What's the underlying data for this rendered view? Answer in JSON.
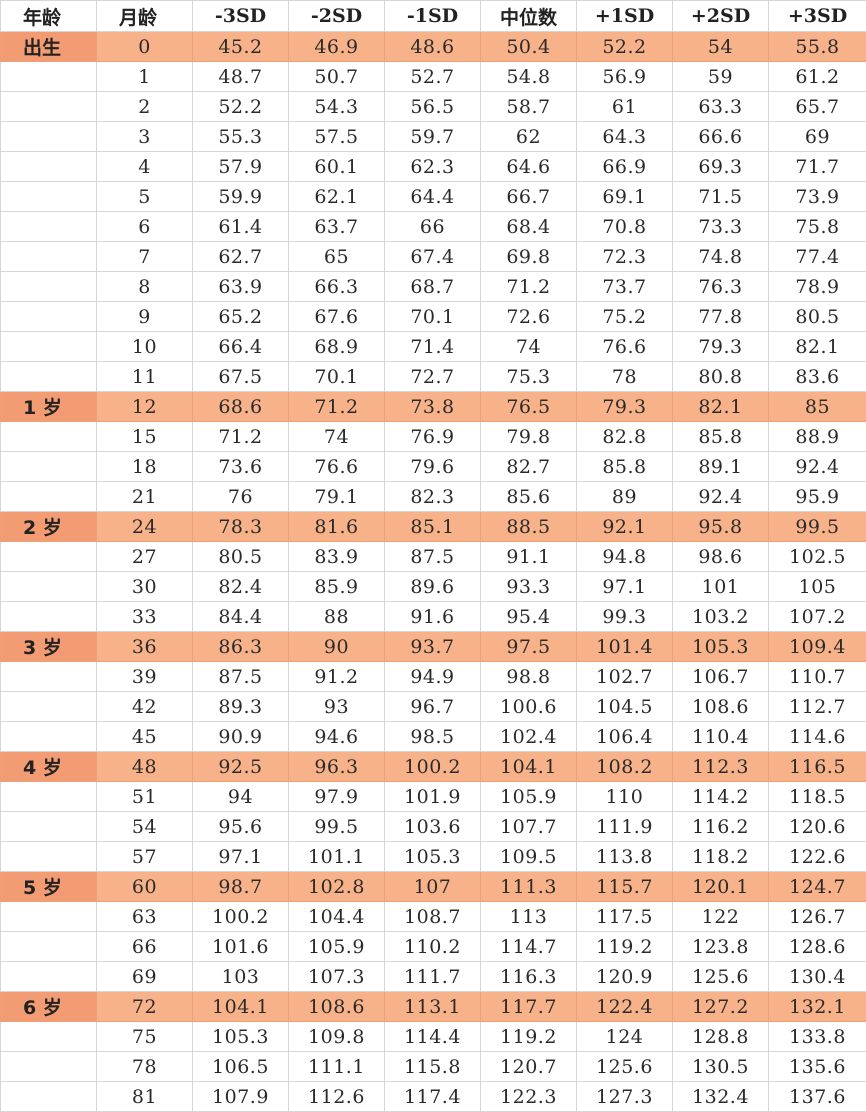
{
  "headers": [
    "年龄",
    "月龄",
    "-3SD",
    "-2SD",
    "-1SD",
    "中位数",
    "+1SD",
    "+2SD",
    "+3SD"
  ],
  "accent_color": "#f7b28a",
  "rows": [
    {
      "age": "出生",
      "month": "0",
      "values": [
        "45.2",
        "46.9",
        "48.6",
        "50.4",
        "52.2",
        "54",
        "55.8"
      ],
      "highlight": true
    },
    {
      "age": "",
      "month": "1",
      "values": [
        "48.7",
        "50.7",
        "52.7",
        "54.8",
        "56.9",
        "59",
        "61.2"
      ],
      "highlight": false
    },
    {
      "age": "",
      "month": "2",
      "values": [
        "52.2",
        "54.3",
        "56.5",
        "58.7",
        "61",
        "63.3",
        "65.7"
      ],
      "highlight": false
    },
    {
      "age": "",
      "month": "3",
      "values": [
        "55.3",
        "57.5",
        "59.7",
        "62",
        "64.3",
        "66.6",
        "69"
      ],
      "highlight": false
    },
    {
      "age": "",
      "month": "4",
      "values": [
        "57.9",
        "60.1",
        "62.3",
        "64.6",
        "66.9",
        "69.3",
        "71.7"
      ],
      "highlight": false
    },
    {
      "age": "",
      "month": "5",
      "values": [
        "59.9",
        "62.1",
        "64.4",
        "66.7",
        "69.1",
        "71.5",
        "73.9"
      ],
      "highlight": false
    },
    {
      "age": "",
      "month": "6",
      "values": [
        "61.4",
        "63.7",
        "66",
        "68.4",
        "70.8",
        "73.3",
        "75.8"
      ],
      "highlight": false
    },
    {
      "age": "",
      "month": "7",
      "values": [
        "62.7",
        "65",
        "67.4",
        "69.8",
        "72.3",
        "74.8",
        "77.4"
      ],
      "highlight": false
    },
    {
      "age": "",
      "month": "8",
      "values": [
        "63.9",
        "66.3",
        "68.7",
        "71.2",
        "73.7",
        "76.3",
        "78.9"
      ],
      "highlight": false
    },
    {
      "age": "",
      "month": "9",
      "values": [
        "65.2",
        "67.6",
        "70.1",
        "72.6",
        "75.2",
        "77.8",
        "80.5"
      ],
      "highlight": false
    },
    {
      "age": "",
      "month": "10",
      "values": [
        "66.4",
        "68.9",
        "71.4",
        "74",
        "76.6",
        "79.3",
        "82.1"
      ],
      "highlight": false
    },
    {
      "age": "",
      "month": "11",
      "values": [
        "67.5",
        "70.1",
        "72.7",
        "75.3",
        "78",
        "80.8",
        "83.6"
      ],
      "highlight": false
    },
    {
      "age": "1 岁",
      "month": "12",
      "values": [
        "68.6",
        "71.2",
        "73.8",
        "76.5",
        "79.3",
        "82.1",
        "85"
      ],
      "highlight": true
    },
    {
      "age": "",
      "month": "15",
      "values": [
        "71.2",
        "74",
        "76.9",
        "79.8",
        "82.8",
        "85.8",
        "88.9"
      ],
      "highlight": false
    },
    {
      "age": "",
      "month": "18",
      "values": [
        "73.6",
        "76.6",
        "79.6",
        "82.7",
        "85.8",
        "89.1",
        "92.4"
      ],
      "highlight": false
    },
    {
      "age": "",
      "month": "21",
      "values": [
        "76",
        "79.1",
        "82.3",
        "85.6",
        "89",
        "92.4",
        "95.9"
      ],
      "highlight": false
    },
    {
      "age": "2 岁",
      "month": "24",
      "values": [
        "78.3",
        "81.6",
        "85.1",
        "88.5",
        "92.1",
        "95.8",
        "99.5"
      ],
      "highlight": true
    },
    {
      "age": "",
      "month": "27",
      "values": [
        "80.5",
        "83.9",
        "87.5",
        "91.1",
        "94.8",
        "98.6",
        "102.5"
      ],
      "highlight": false
    },
    {
      "age": "",
      "month": "30",
      "values": [
        "82.4",
        "85.9",
        "89.6",
        "93.3",
        "97.1",
        "101",
        "105"
      ],
      "highlight": false
    },
    {
      "age": "",
      "month": "33",
      "values": [
        "84.4",
        "88",
        "91.6",
        "95.4",
        "99.3",
        "103.2",
        "107.2"
      ],
      "highlight": false
    },
    {
      "age": "3 岁",
      "month": "36",
      "values": [
        "86.3",
        "90",
        "93.7",
        "97.5",
        "101.4",
        "105.3",
        "109.4"
      ],
      "highlight": true
    },
    {
      "age": "",
      "month": "39",
      "values": [
        "87.5",
        "91.2",
        "94.9",
        "98.8",
        "102.7",
        "106.7",
        "110.7"
      ],
      "highlight": false
    },
    {
      "age": "",
      "month": "42",
      "values": [
        "89.3",
        "93",
        "96.7",
        "100.6",
        "104.5",
        "108.6",
        "112.7"
      ],
      "highlight": false
    },
    {
      "age": "",
      "month": "45",
      "values": [
        "90.9",
        "94.6",
        "98.5",
        "102.4",
        "106.4",
        "110.4",
        "114.6"
      ],
      "highlight": false
    },
    {
      "age": "4 岁",
      "month": "48",
      "values": [
        "92.5",
        "96.3",
        "100.2",
        "104.1",
        "108.2",
        "112.3",
        "116.5"
      ],
      "highlight": true
    },
    {
      "age": "",
      "month": "51",
      "values": [
        "94",
        "97.9",
        "101.9",
        "105.9",
        "110",
        "114.2",
        "118.5"
      ],
      "highlight": false
    },
    {
      "age": "",
      "month": "54",
      "values": [
        "95.6",
        "99.5",
        "103.6",
        "107.7",
        "111.9",
        "116.2",
        "120.6"
      ],
      "highlight": false
    },
    {
      "age": "",
      "month": "57",
      "values": [
        "97.1",
        "101.1",
        "105.3",
        "109.5",
        "113.8",
        "118.2",
        "122.6"
      ],
      "highlight": false
    },
    {
      "age": "5 岁",
      "month": "60",
      "values": [
        "98.7",
        "102.8",
        "107",
        "111.3",
        "115.7",
        "120.1",
        "124.7"
      ],
      "highlight": true
    },
    {
      "age": "",
      "month": "63",
      "values": [
        "100.2",
        "104.4",
        "108.7",
        "113",
        "117.5",
        "122",
        "126.7"
      ],
      "highlight": false
    },
    {
      "age": "",
      "month": "66",
      "values": [
        "101.6",
        "105.9",
        "110.2",
        "114.7",
        "119.2",
        "123.8",
        "128.6"
      ],
      "highlight": false
    },
    {
      "age": "",
      "month": "69",
      "values": [
        "103",
        "107.3",
        "111.7",
        "116.3",
        "120.9",
        "125.6",
        "130.4"
      ],
      "highlight": false
    },
    {
      "age": "6 岁",
      "month": "72",
      "values": [
        "104.1",
        "108.6",
        "113.1",
        "117.7",
        "122.4",
        "127.2",
        "132.1"
      ],
      "highlight": true
    },
    {
      "age": "",
      "month": "75",
      "values": [
        "105.3",
        "109.8",
        "114.4",
        "119.2",
        "124",
        "128.8",
        "133.8"
      ],
      "highlight": false
    },
    {
      "age": "",
      "month": "78",
      "values": [
        "106.5",
        "111.1",
        "115.8",
        "120.7",
        "125.6",
        "130.5",
        "135.6"
      ],
      "highlight": false
    },
    {
      "age": "",
      "month": "81",
      "values": [
        "107.9",
        "112.6",
        "117.4",
        "122.3",
        "127.3",
        "132.4",
        "137.6"
      ],
      "highlight": false
    }
  ]
}
